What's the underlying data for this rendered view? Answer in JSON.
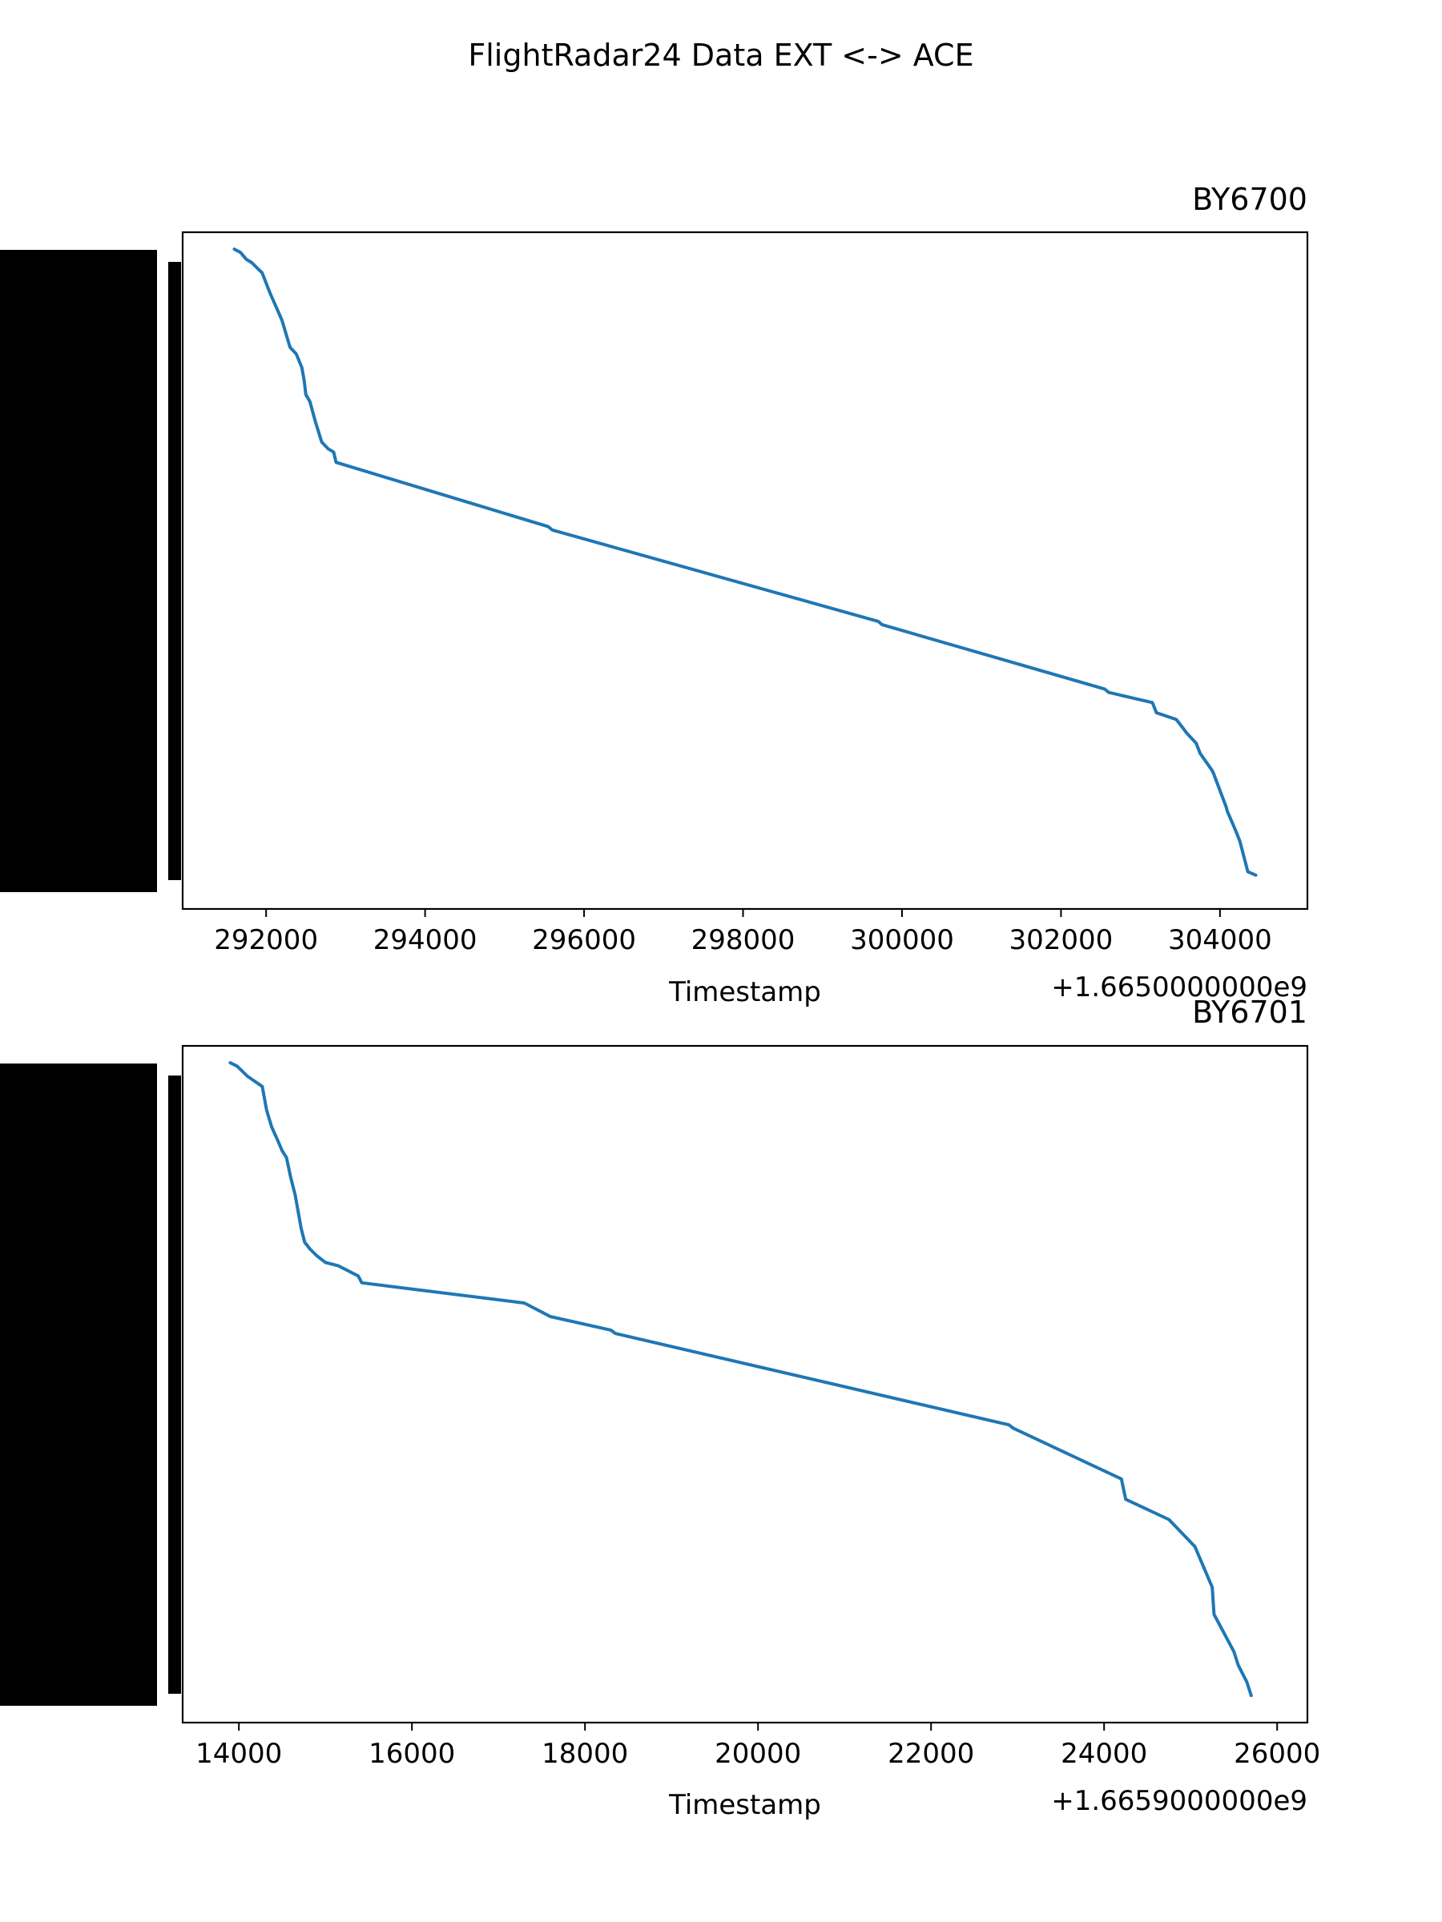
{
  "colors": {
    "series": "#1f77b4",
    "axis": "#000000",
    "background": "#ffffff"
  },
  "figure": {
    "suptitle": "FlightRadar24 Data EXT <-> ACE"
  },
  "chart_data": [
    {
      "type": "line",
      "title": "BY6700",
      "xlabel": "Timestamp",
      "ylabel": "",
      "x_offset_text": "+1.6650000000e9",
      "x_offset": 1665000000,
      "xlim": [
        290950,
        305100
      ],
      "ylim": [
        0,
        1
      ],
      "xticks": [
        292000,
        294000,
        296000,
        298000,
        300000,
        302000,
        304000
      ],
      "y_tick_labels_note": "dense overlapping tick labels rendered as solid black bands",
      "grid": false,
      "series": [
        {
          "x": [
            291600,
            291680,
            291750,
            291820,
            291950,
            292050,
            292200,
            292250,
            292300,
            292380,
            292450,
            292480,
            292500,
            292550,
            292620,
            292700,
            292780,
            292850,
            292880,
            295550,
            295600,
            299700,
            299750,
            302550,
            302600,
            303150,
            303200,
            303450,
            303550,
            303580,
            303700,
            303750,
            303900,
            303920,
            304080,
            304090,
            304200,
            304250,
            304350,
            304450
          ],
          "y": [
            0.975,
            0.97,
            0.96,
            0.955,
            0.94,
            0.91,
            0.87,
            0.85,
            0.83,
            0.82,
            0.8,
            0.78,
            0.76,
            0.75,
            0.72,
            0.69,
            0.68,
            0.675,
            0.66,
            0.565,
            0.56,
            0.425,
            0.42,
            0.325,
            0.32,
            0.305,
            0.29,
            0.28,
            0.265,
            0.26,
            0.245,
            0.23,
            0.205,
            0.2,
            0.15,
            0.145,
            0.115,
            0.1,
            0.055,
            0.05
          ]
        }
      ]
    },
    {
      "type": "line",
      "title": "BY6701",
      "xlabel": "Timestamp",
      "ylabel": "",
      "x_offset_text": "+1.6659000000e9",
      "x_offset": 1665900000,
      "xlim": [
        13350,
        26350
      ],
      "ylim": [
        0,
        1
      ],
      "xticks": [
        14000,
        16000,
        18000,
        20000,
        22000,
        24000,
        26000
      ],
      "y_tick_labels_note": "dense overlapping tick labels rendered as solid black bands",
      "grid": false,
      "series": [
        {
          "x": [
            13900,
            13980,
            14100,
            14270,
            14320,
            14380,
            14450,
            14500,
            14550,
            14600,
            14650,
            14720,
            14760,
            14820,
            14900,
            15000,
            15150,
            15380,
            15420,
            17300,
            17600,
            18300,
            18350,
            22900,
            22950,
            24200,
            24250,
            24750,
            25050,
            25150,
            25250,
            25270,
            25500,
            25550,
            25650,
            25700
          ],
          "y": [
            0.975,
            0.97,
            0.955,
            0.94,
            0.905,
            0.88,
            0.86,
            0.845,
            0.835,
            0.805,
            0.78,
            0.73,
            0.71,
            0.7,
            0.69,
            0.68,
            0.675,
            0.66,
            0.65,
            0.62,
            0.6,
            0.58,
            0.575,
            0.44,
            0.435,
            0.36,
            0.33,
            0.3,
            0.26,
            0.23,
            0.2,
            0.16,
            0.105,
            0.085,
            0.06,
            0.04
          ]
        }
      ]
    }
  ]
}
